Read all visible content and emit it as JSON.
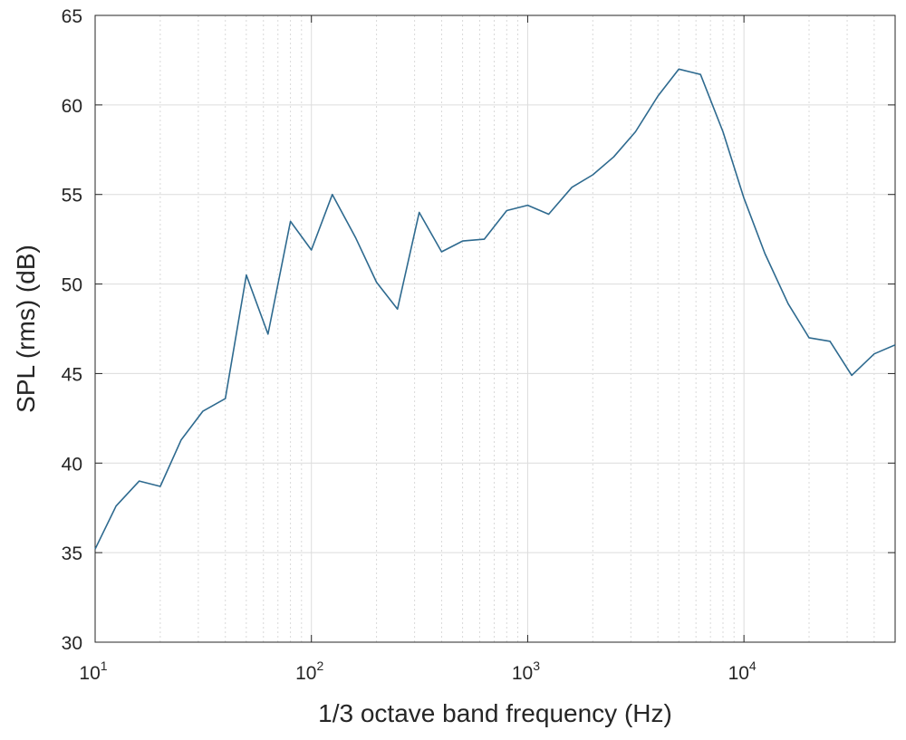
{
  "chart_data": {
    "type": "line",
    "xlabel": "1/3 octave band frequency (Hz)",
    "ylabel": "SPL (rms) (dB)",
    "xscale": "log",
    "xlim": [
      10,
      50000
    ],
    "ylim": [
      30,
      65
    ],
    "grid": true,
    "y_ticks": [
      30,
      35,
      40,
      45,
      50,
      55,
      60,
      65
    ],
    "x_ticks": [
      {
        "value": 10,
        "base": "10",
        "exp": "1"
      },
      {
        "value": 100,
        "base": "10",
        "exp": "2"
      },
      {
        "value": 1000,
        "base": "10",
        "exp": "3"
      },
      {
        "value": 10000,
        "base": "10",
        "exp": "4"
      }
    ],
    "line_color": "#2E6A8F",
    "series": [
      {
        "x": [
          10,
          12.5,
          16,
          20,
          25,
          31.5,
          40,
          50,
          63,
          80,
          100,
          125,
          160,
          200,
          250,
          315,
          400,
          500,
          630,
          800,
          1000,
          1250,
          1600,
          2000,
          2500,
          3150,
          4000,
          5000,
          6300,
          8000,
          10000,
          12500,
          16000,
          20000,
          25000,
          31500,
          40000,
          50000
        ],
        "y": [
          35.2,
          37.6,
          39.0,
          38.7,
          41.3,
          42.9,
          43.6,
          50.5,
          47.2,
          53.5,
          51.9,
          55.0,
          52.6,
          50.1,
          48.6,
          54.0,
          51.8,
          52.4,
          52.5,
          54.1,
          54.4,
          53.9,
          55.4,
          56.1,
          57.1,
          58.5,
          60.5,
          62.0,
          61.7,
          58.5,
          54.8,
          51.7,
          48.9,
          47.0,
          46.8,
          44.9,
          46.1,
          46.6
        ]
      }
    ]
  }
}
